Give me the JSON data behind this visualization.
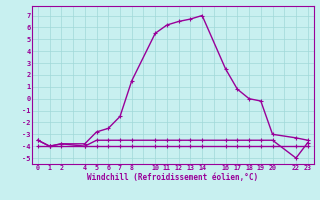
{
  "xlabel": "Windchill (Refroidissement éolien,°C)",
  "background_color": "#c8f0f0",
  "grid_color": "#a0d8d8",
  "line_color": "#990099",
  "hours1": [
    0,
    1,
    2,
    4,
    5,
    6,
    7,
    8,
    10,
    11,
    12,
    13,
    14,
    16,
    17,
    18,
    19,
    20,
    22,
    23
  ],
  "temp1": [
    -4.0,
    -4.0,
    -4.0,
    -4.0,
    -4.0,
    -4.0,
    -4.0,
    -4.0,
    -4.0,
    -4.0,
    -4.0,
    -4.0,
    -4.0,
    -4.0,
    -4.0,
    -4.0,
    -4.0,
    -4.0,
    -4.0,
    -4.0
  ],
  "hours2": [
    0,
    1,
    2,
    4,
    5,
    6,
    7,
    8,
    10,
    11,
    12,
    13,
    14,
    16,
    17,
    18,
    19,
    20,
    22,
    23
  ],
  "temp2": [
    -3.5,
    -4.0,
    -3.8,
    -3.8,
    -2.8,
    -2.5,
    -1.5,
    1.5,
    5.5,
    6.2,
    6.5,
    6.7,
    7.0,
    2.5,
    0.8,
    0.0,
    -0.2,
    -3.0,
    -3.3,
    -3.5
  ],
  "hours3": [
    0,
    1,
    2,
    4,
    5,
    6,
    7,
    8,
    10,
    11,
    12,
    13,
    14,
    16,
    17,
    18,
    19,
    20,
    22,
    23
  ],
  "temp3": [
    -3.5,
    -4.0,
    -3.8,
    -4.0,
    -3.5,
    -3.5,
    -3.5,
    -3.5,
    -3.5,
    -3.5,
    -3.5,
    -3.5,
    -3.5,
    -3.5,
    -3.5,
    -3.5,
    -3.5,
    -3.5,
    -5.0,
    -3.7
  ],
  "xtick_labels": [
    "0",
    "1",
    "2",
    "",
    "4",
    "5",
    "6",
    "7",
    "8",
    "",
    "10",
    "11",
    "12",
    "13",
    "14",
    "",
    "16",
    "17",
    "18",
    "19",
    "20",
    "",
    "22",
    "23"
  ],
  "ytick_min": -5,
  "ytick_max": 7,
  "ylim": [
    -5.5,
    7.8
  ],
  "xlim": [
    -0.5,
    23.5
  ]
}
